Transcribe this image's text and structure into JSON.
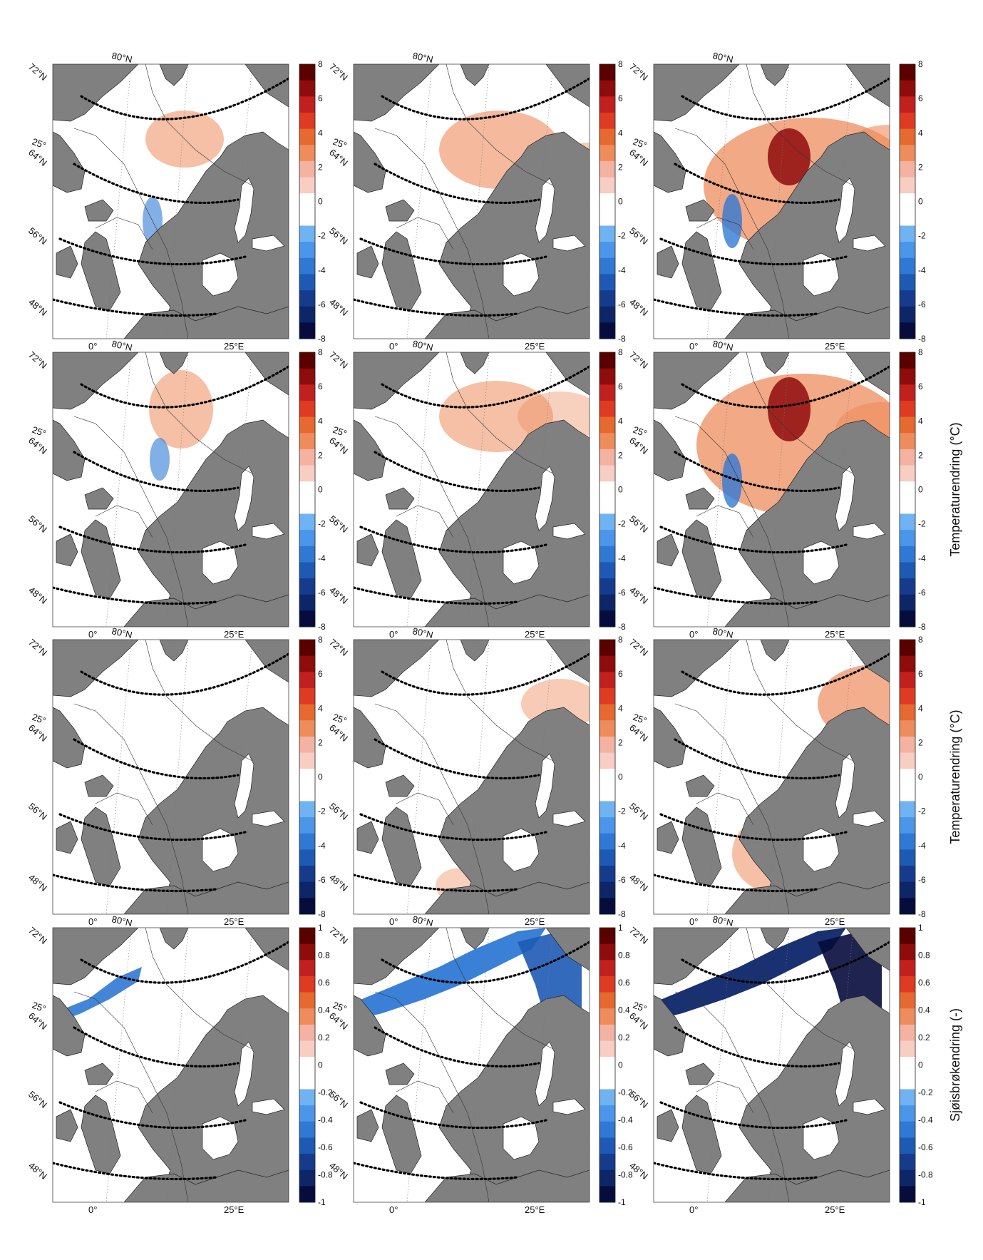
{
  "figure": {
    "rows": [
      {
        "colorbar_label": "",
        "ticks": [
          "8",
          "6",
          "4",
          "2",
          "0",
          "-2",
          "-4",
          "-6",
          "-8"
        ],
        "colors": [
          "#5a0000",
          "#8f0c0c",
          "#c21f1f",
          "#de3b22",
          "#e6692f",
          "#ee8c5c",
          "#f3b2a2",
          "#f7cdc4",
          "#ffffff",
          "#ffffff",
          "#6fb3f2",
          "#4b96e8",
          "#2f79d4",
          "#1e5ab4",
          "#153c8c",
          "#0d2668",
          "#060c3c"
        ],
        "panels": [
          {
            "warm": [
              [
                185,
                105,
                55,
                40,
                0.55
              ]
            ],
            "cold": [
              [
                140,
                220,
                14,
                34,
                0.6
              ]
            ],
            "strong": []
          },
          {
            "warm": [
              [
                205,
                120,
                85,
                55,
                0.6
              ],
              [
                330,
                140,
                55,
                30,
                0.45
              ],
              [
                600,
                335,
                60,
                30,
                0.45
              ]
            ],
            "cold": [],
            "strong": []
          },
          {
            "warm": [
              [
                220,
                170,
                150,
                95,
                0.75
              ],
              [
                330,
                130,
                70,
                45,
                0.6
              ],
              [
                600,
                330,
                70,
                40,
                0.6
              ]
            ],
            "cold": [
              [
                110,
                220,
                14,
                38,
                0.8
              ]
            ],
            "strong": [
              [
                190,
                130,
                30,
                40
              ]
            ]
          }
        ]
      },
      {
        "colorbar_label": "Temperaturendring (°C)",
        "ticks": [
          "8",
          "6",
          "4",
          "2",
          "0",
          "-2",
          "-4",
          "-6",
          "-8"
        ],
        "colors": [
          "#5a0000",
          "#8f0c0c",
          "#c21f1f",
          "#de3b22",
          "#e6692f",
          "#ee8c5c",
          "#f3b2a2",
          "#f7cdc4",
          "#ffffff",
          "#ffffff",
          "#6fb3f2",
          "#4b96e8",
          "#2f79d4",
          "#1e5ab4",
          "#153c8c",
          "#0d2668",
          "#060c3c"
        ],
        "panels": [
          {
            "warm": [
              [
                180,
                80,
                45,
                55,
                0.55
              ]
            ],
            "cold": [
              [
                150,
                150,
                14,
                30,
                0.6
              ]
            ],
            "strong": []
          },
          {
            "warm": [
              [
                200,
                90,
                80,
                50,
                0.55
              ],
              [
                290,
                90,
                60,
                35,
                0.4
              ]
            ],
            "cold": [],
            "strong": []
          },
          {
            "warm": [
              [
                210,
                130,
                150,
                100,
                0.75
              ],
              [
                320,
                110,
                65,
                40,
                0.6
              ]
            ],
            "cold": [
              [
                110,
                180,
                14,
                38,
                0.8
              ]
            ],
            "strong": [
              [
                190,
                80,
                30,
                45
              ]
            ]
          }
        ]
      },
      {
        "colorbar_label": "Temperaturendring (°C)",
        "ticks": [
          "8",
          "6",
          "4",
          "2",
          "0",
          "-2",
          "-4",
          "-6",
          "-8"
        ],
        "colors": [
          "#5a0000",
          "#8f0c0c",
          "#c21f1f",
          "#de3b22",
          "#e6692f",
          "#ee8c5c",
          "#f3b2a2",
          "#f7cdc4",
          "#ffffff",
          "#ffffff",
          "#6fb3f2",
          "#4b96e8",
          "#2f79d4",
          "#1e5ab4",
          "#153c8c",
          "#0d2668",
          "#060c3c"
        ],
        "panels": [
          {
            "warm": [],
            "cold": [],
            "strong": []
          },
          {
            "warm": [
              [
                290,
                90,
                55,
                35,
                0.45
              ],
              [
                150,
                345,
                35,
                25,
                0.4
              ]
            ],
            "cold": [],
            "strong": []
          },
          {
            "warm": [
              [
                310,
                90,
                80,
                55,
                0.7
              ],
              [
                170,
                300,
                60,
                55,
                0.55
              ]
            ],
            "cold": [],
            "strong": []
          }
        ]
      },
      {
        "colorbar_label": "Sjøisbrøkendring (-)",
        "ticks": [
          "1",
          "0.8",
          "0.6",
          "0.4",
          "0.2",
          "0",
          "-0.2",
          "-0.4",
          "-0.6",
          "-0.8",
          "-1"
        ],
        "colors": [
          "#5a0000",
          "#8f0c0c",
          "#c21f1f",
          "#de3b22",
          "#e6692f",
          "#ee8c5c",
          "#f3b2a2",
          "#f7cdc4",
          "#ffffff",
          "#ffffff",
          "#6fb3f2",
          "#4b96e8",
          "#2f79d4",
          "#1e5ab4",
          "#153c8c",
          "#0d2668",
          "#060c3c"
        ],
        "panels": [
          {
            "warm": [
              [
                260,
                145,
                10,
                20,
                0.6
              ],
              [
                290,
                195,
                8,
                30,
                0.5
              ]
            ],
            "cold": [],
            "strong": []
          },
          {
            "warm": [],
            "cold": [],
            "strong": []
          },
          {
            "warm": [],
            "cold": [],
            "strong": []
          }
        ]
      }
    ],
    "lat_labels": [
      "72°N",
      "64°N",
      "56°N",
      "48°N"
    ],
    "lon_labels": [
      "0°",
      "25°E"
    ],
    "top_label": "80°N",
    "side_label": "25°"
  }
}
